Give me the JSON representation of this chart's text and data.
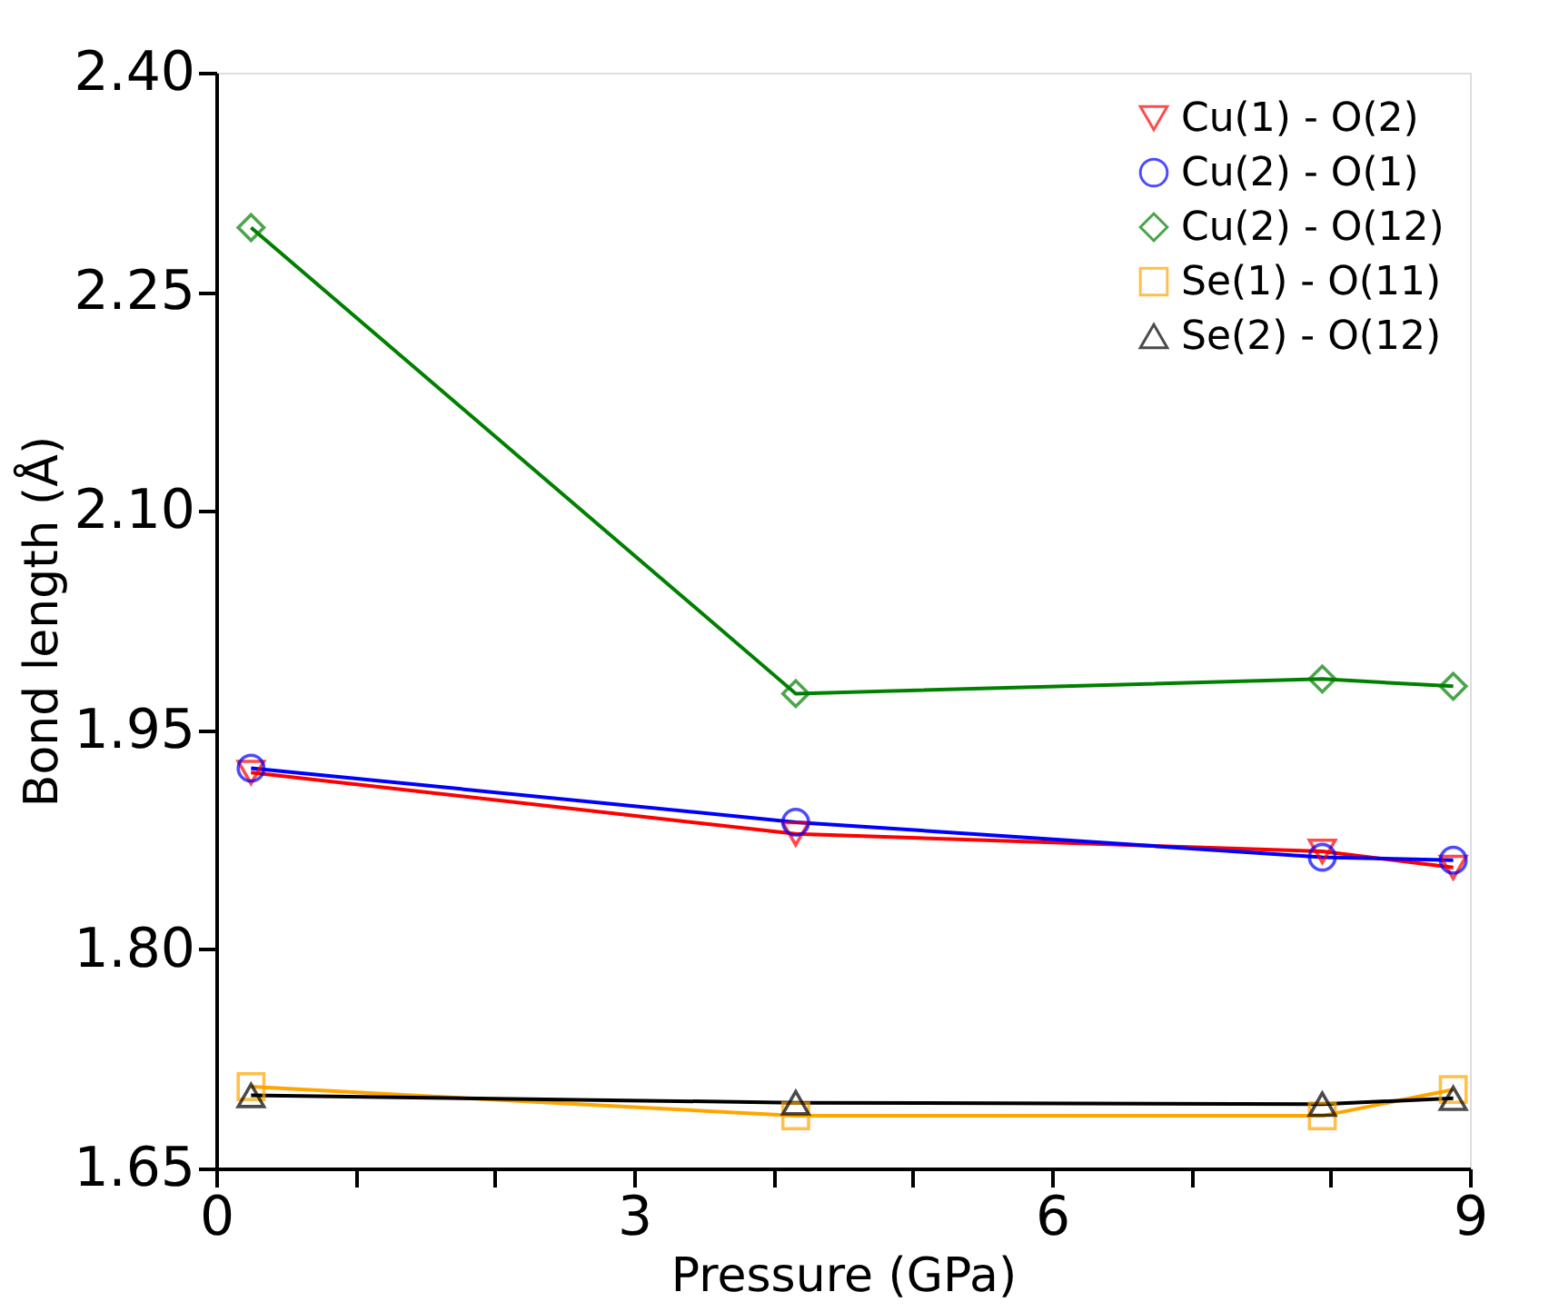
{
  "chart_data": {
    "type": "line",
    "xlabel": "Pressure (GPa)",
    "ylabel": "Bond length (Å)",
    "x": [
      0.25,
      4.16,
      7.94,
      8.88
    ],
    "xlim": [
      0,
      9
    ],
    "ylim": [
      1.65,
      2.4
    ],
    "xticks": [
      0,
      {
        "value": 1,
        "label": null
      },
      {
        "value": 2,
        "label": null
      },
      3,
      {
        "value": 4,
        "label": null
      },
      {
        "value": 5,
        "label": null
      },
      6,
      {
        "value": 7,
        "label": null
      },
      {
        "value": 8,
        "label": null
      },
      9
    ],
    "yticks": [
      {
        "value": 1.65,
        "label": "1.65"
      },
      {
        "value": 1.8,
        "label": "1.80"
      },
      {
        "value": 1.95,
        "label": "1.95"
      },
      {
        "value": 2.1,
        "label": "2.10"
      },
      {
        "value": 2.25,
        "label": "2.25"
      },
      {
        "value": 2.4,
        "label": "2.40"
      }
    ],
    "grid": false,
    "legend": "top right",
    "line_style": "solid",
    "series": [
      {
        "name": "Cu(1) - O(2)",
        "color": "#ff0000",
        "marker": "triangle-down",
        "values": [
          1.921,
          1.879,
          1.867,
          1.856
        ]
      },
      {
        "name": "Cu(2) - O(1)",
        "color": "#0000ff",
        "marker": "circle",
        "values": [
          1.924,
          1.887,
          1.863,
          1.861
        ]
      },
      {
        "name": "Cu(2) - O(12)",
        "color": "#008000",
        "marker": "diamond",
        "values": [
          2.294,
          1.975,
          1.985,
          1.98
        ]
      },
      {
        "name": "Se(1) - O(11)",
        "color": "#ffa500",
        "marker": "square",
        "values": [
          1.706,
          1.686,
          1.686,
          1.704
        ]
      },
      {
        "name": "Se(2) - O(12)",
        "color": "#000000",
        "marker": "triangle-up",
        "values": [
          1.7,
          1.695,
          1.694,
          1.698
        ]
      }
    ]
  }
}
